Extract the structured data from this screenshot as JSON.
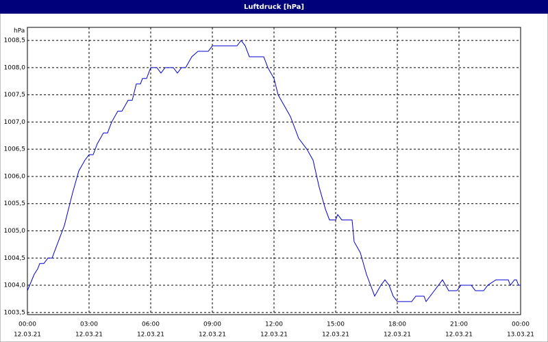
{
  "chart_data": {
    "type": "line",
    "title": "Luftdruck [hPa]",
    "y_label": "hPa",
    "x": [
      0,
      0.33,
      0.5,
      0.6,
      0.8,
      1.0,
      1.2,
      1.4,
      1.6,
      1.8,
      2.0,
      2.2,
      2.5,
      2.8,
      3.0,
      3.2,
      3.4,
      3.7,
      3.9,
      4.1,
      4.4,
      4.6,
      4.9,
      5.1,
      5.3,
      5.5,
      5.6,
      5.8,
      6.0,
      6.3,
      6.5,
      6.7,
      7.1,
      7.3,
      7.5,
      7.7,
      8.0,
      8.3,
      8.8,
      9.0,
      10.0,
      10.2,
      10.4,
      10.6,
      10.8,
      11.5,
      11.7,
      12.0,
      12.2,
      12.5,
      12.8,
      13.0,
      13.2,
      13.6,
      13.9,
      14.2,
      14.5,
      14.7,
      15.0,
      15.1,
      15.3,
      15.8,
      15.9,
      16.2,
      16.5,
      16.9,
      17.2,
      17.4,
      17.6,
      17.8,
      18.0,
      18.7,
      18.9,
      19.3,
      19.4,
      19.8,
      20.0,
      20.2,
      20.5,
      20.9,
      21.1,
      21.6,
      21.8,
      22.2,
      22.4,
      22.8,
      23.4,
      23.5,
      23.7,
      23.8,
      23.9,
      24.0
    ],
    "series": [
      {
        "name": "Luftdruck",
        "color": "#0000cc",
        "values": [
          1003.9,
          1004.2,
          1004.3,
          1004.4,
          1004.4,
          1004.5,
          1004.5,
          1004.7,
          1004.9,
          1005.1,
          1005.4,
          1005.7,
          1006.1,
          1006.3,
          1006.4,
          1006.4,
          1006.6,
          1006.8,
          1006.8,
          1007.0,
          1007.2,
          1007.2,
          1007.4,
          1007.4,
          1007.7,
          1007.7,
          1007.8,
          1007.8,
          1008.0,
          1008.0,
          1007.9,
          1008.0,
          1008.0,
          1007.9,
          1008.0,
          1008.0,
          1008.2,
          1008.3,
          1008.3,
          1008.4,
          1008.4,
          1008.4,
          1008.5,
          1008.4,
          1008.2,
          1008.2,
          1008.0,
          1007.8,
          1007.5,
          1007.3,
          1007.1,
          1006.9,
          1006.7,
          1006.5,
          1006.3,
          1005.8,
          1005.4,
          1005.2,
          1005.2,
          1005.3,
          1005.2,
          1005.2,
          1004.8,
          1004.6,
          1004.2,
          1003.8,
          1004.0,
          1004.1,
          1004.0,
          1003.8,
          1003.7,
          1003.7,
          1003.8,
          1003.8,
          1003.7,
          1003.9,
          1004.0,
          1004.1,
          1003.9,
          1003.9,
          1004.0,
          1004.0,
          1003.9,
          1003.9,
          1004.0,
          1004.1,
          1004.1,
          1004.0,
          1004.1,
          1004.1,
          1004.0,
          1004.0
        ]
      }
    ],
    "xlim": [
      0,
      24
    ],
    "xticks": [
      {
        "value": 0,
        "label": "00:00",
        "date": "12.03.21"
      },
      {
        "value": 3,
        "label": "03:00",
        "date": "12.03.21"
      },
      {
        "value": 6,
        "label": "06:00",
        "date": "12.03.21"
      },
      {
        "value": 9,
        "label": "09:00",
        "date": "12.03.21"
      },
      {
        "value": 12,
        "label": "12:00",
        "date": "12.03.21"
      },
      {
        "value": 15,
        "label": "15:00",
        "date": "12.03.21"
      },
      {
        "value": 18,
        "label": "18:00",
        "date": "12.03.21"
      },
      {
        "value": 21,
        "label": "21:00",
        "date": "12.03.21"
      },
      {
        "value": 24,
        "label": "00:00",
        "date": "13.03.21"
      }
    ],
    "ylim": [
      1003.46,
      1008.74
    ],
    "yticks": [
      {
        "value": 1003.5,
        "label": "1003,5"
      },
      {
        "value": 1004.0,
        "label": "1004,0"
      },
      {
        "value": 1004.5,
        "label": "1004,5"
      },
      {
        "value": 1005.0,
        "label": "1005,0"
      },
      {
        "value": 1005.5,
        "label": "1005,5"
      },
      {
        "value": 1006.0,
        "label": "1006,0"
      },
      {
        "value": 1006.5,
        "label": "1006,5"
      },
      {
        "value": 1007.0,
        "label": "1007,0"
      },
      {
        "value": 1007.5,
        "label": "1007,5"
      },
      {
        "value": 1008.0,
        "label": "1008,0"
      },
      {
        "value": 1008.5,
        "label": "1008,5"
      }
    ],
    "grid": true
  }
}
